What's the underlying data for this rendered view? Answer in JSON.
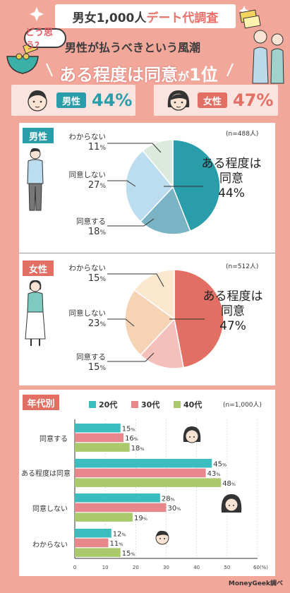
{
  "header": {
    "title_pre": "男女1,000人",
    "title_accent": "デート代調査",
    "bubble": "どう思う？",
    "subtitle": "男性が払うべきという風潮",
    "result_main": "ある程度は同意",
    "result_particle": "が",
    "result_rank": "1位"
  },
  "summary": {
    "male": {
      "label": "男性",
      "percent": "44%"
    },
    "female": {
      "label": "女性",
      "percent": "47%"
    }
  },
  "male_panel": {
    "tag": "男性",
    "n": "(n=488人)"
  },
  "female_panel": {
    "tag": "女性",
    "n": "(n=512人)"
  },
  "age_panel": {
    "tag": "年代別",
    "n": "(n=1,000人)"
  },
  "footer": "MoneyGeek調べ",
  "colors": {
    "male_main": "#2a9dab",
    "male_agree": "#7ab4c4",
    "male_disagree": "#bcdcef",
    "male_unknown": "#dce9dd",
    "female_main": "#e16f63",
    "female_agree": "#f5c0bc",
    "female_disagree": "#f6d3b4",
    "female_unknown": "#fbe8cf",
    "s20": "#3bbcbf",
    "s30": "#e7878c",
    "s40": "#a9c96b"
  },
  "chart_data": [
    {
      "type": "pie",
      "title": "男性",
      "labels": [
        "ある程度は同意",
        "同意する",
        "同意しない",
        "わからない"
      ],
      "values": [
        44,
        18,
        27,
        11
      ]
    },
    {
      "type": "pie",
      "title": "女性",
      "labels": [
        "ある程度は同意",
        "同意する",
        "同意しない",
        "わからない"
      ],
      "values": [
        47,
        15,
        23,
        15
      ]
    },
    {
      "type": "bar",
      "orientation": "horizontal",
      "title": "年代別",
      "categories": [
        "同意する",
        "ある程度は同意",
        "同意しない",
        "わからない"
      ],
      "series": [
        {
          "name": "20代",
          "values": [
            15,
            45,
            28,
            12
          ]
        },
        {
          "name": "30代",
          "values": [
            16,
            43,
            30,
            11
          ]
        },
        {
          "name": "40代",
          "values": [
            18,
            48,
            19,
            15
          ]
        }
      ],
      "xlim": [
        0,
        60
      ],
      "xticks": [
        "0",
        "10",
        "20",
        "30",
        "40",
        "50",
        "60(%)"
      ]
    }
  ]
}
